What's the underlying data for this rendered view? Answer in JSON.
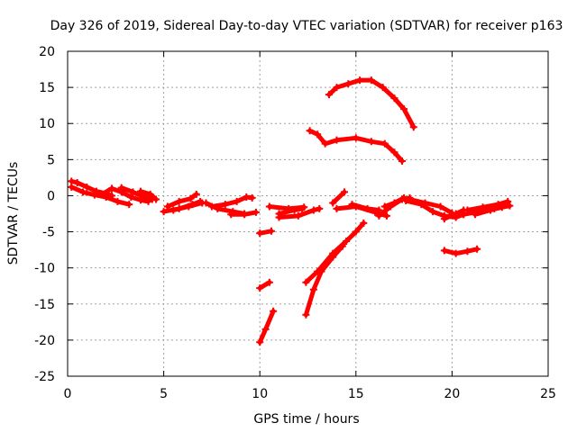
{
  "chart_data": {
    "type": "scatter",
    "title": "Day 326 of 2019, Sidereal Day-to-day VTEC variation (SDTVAR) for receiver p163",
    "xlabel": "GPS time / hours",
    "ylabel": "SDTVAR / TECUs",
    "xlim": [
      0,
      25
    ],
    "ylim": [
      -25,
      20
    ],
    "xticks": [
      0,
      5,
      10,
      15,
      20,
      25
    ],
    "yticks": [
      -25,
      -20,
      -15,
      -10,
      -5,
      0,
      5,
      10,
      15,
      20
    ],
    "grid": true,
    "marker": "+",
    "color": "#ff0000",
    "series": [
      {
        "name": "s1",
        "points": [
          [
            0.2,
            2.0
          ],
          [
            0.5,
            1.8
          ],
          [
            1.0,
            1.2
          ],
          [
            1.5,
            0.6
          ],
          [
            2.0,
            0.3
          ],
          [
            2.3,
            0.0
          ]
        ]
      },
      {
        "name": "s2",
        "points": [
          [
            0.2,
            1.2
          ],
          [
            0.8,
            0.5
          ],
          [
            1.4,
            0.1
          ],
          [
            2.0,
            -0.2
          ],
          [
            2.6,
            -0.8
          ],
          [
            3.2,
            -1.2
          ]
        ]
      },
      {
        "name": "s3",
        "points": [
          [
            1.8,
            0.2
          ],
          [
            2.3,
            1.0
          ],
          [
            2.8,
            0.5
          ],
          [
            3.3,
            -0.2
          ],
          [
            3.8,
            -0.6
          ],
          [
            4.2,
            -0.8
          ]
        ]
      },
      {
        "name": "s4",
        "points": [
          [
            2.8,
            1.1
          ],
          [
            3.4,
            0.5
          ],
          [
            4.0,
            -0.2
          ],
          [
            4.4,
            -0.5
          ]
        ]
      },
      {
        "name": "s5",
        "points": [
          [
            3.8,
            0.6
          ],
          [
            4.3,
            0.2
          ],
          [
            4.6,
            -0.5
          ]
        ]
      },
      {
        "name": "s6",
        "points": [
          [
            5.0,
            -2.2
          ],
          [
            5.8,
            -1.8
          ],
          [
            6.5,
            -1.2
          ],
          [
            6.9,
            -0.8
          ]
        ]
      },
      {
        "name": "s7",
        "points": [
          [
            5.2,
            -1.5
          ],
          [
            5.8,
            -0.8
          ],
          [
            6.4,
            -0.4
          ],
          [
            6.7,
            0.2
          ]
        ]
      },
      {
        "name": "s8",
        "points": [
          [
            5.5,
            -2.0
          ],
          [
            6.3,
            -1.5
          ],
          [
            7.0,
            -1.0
          ]
        ]
      },
      {
        "name": "s9",
        "points": [
          [
            7.2,
            -1.0
          ],
          [
            7.8,
            -1.8
          ],
          [
            8.6,
            -2.2
          ],
          [
            9.2,
            -2.5
          ]
        ]
      },
      {
        "name": "s10",
        "points": [
          [
            7.5,
            -1.5
          ],
          [
            8.2,
            -1.2
          ],
          [
            8.8,
            -0.8
          ],
          [
            9.3,
            -0.2
          ],
          [
            9.6,
            -0.3
          ]
        ]
      },
      {
        "name": "s11",
        "points": [
          [
            8.5,
            -2.6
          ],
          [
            9.2,
            -2.6
          ],
          [
            9.8,
            -2.3
          ]
        ]
      },
      {
        "name": "s12",
        "points": [
          [
            10.0,
            -5.2
          ],
          [
            10.6,
            -4.9
          ]
        ]
      },
      {
        "name": "s13",
        "points": [
          [
            10.0,
            -12.8
          ],
          [
            10.5,
            -12.0
          ]
        ]
      },
      {
        "name": "s14",
        "points": [
          [
            10.0,
            -20.3
          ],
          [
            10.3,
            -18.5
          ],
          [
            10.7,
            -16.0
          ]
        ]
      },
      {
        "name": "s15",
        "points": [
          [
            10.5,
            -1.5
          ],
          [
            11.5,
            -1.8
          ],
          [
            12.3,
            -1.6
          ]
        ]
      },
      {
        "name": "s16",
        "points": [
          [
            11.0,
            -3.0
          ],
          [
            12.0,
            -2.8
          ],
          [
            12.8,
            -2.0
          ],
          [
            13.1,
            -1.8
          ]
        ]
      },
      {
        "name": "s17",
        "points": [
          [
            11.0,
            -2.5
          ],
          [
            11.8,
            -2.0
          ],
          [
            12.2,
            -1.8
          ]
        ]
      },
      {
        "name": "s18",
        "points": [
          [
            13.8,
            -1.0
          ],
          [
            14.4,
            0.5
          ]
        ]
      },
      {
        "name": "s19",
        "points": [
          [
            12.4,
            -12.0
          ],
          [
            13.0,
            -10.5
          ],
          [
            13.8,
            -8.0
          ],
          [
            14.5,
            -6.3
          ],
          [
            15.0,
            -5.0
          ],
          [
            15.4,
            -3.8
          ]
        ]
      },
      {
        "name": "s20",
        "points": [
          [
            12.4,
            -16.5
          ],
          [
            12.8,
            -13.0
          ],
          [
            13.2,
            -10.5
          ],
          [
            13.8,
            -8.5
          ],
          [
            14.3,
            -7.0
          ]
        ]
      },
      {
        "name": "s21",
        "points": [
          [
            12.6,
            9.0
          ],
          [
            13.0,
            8.5
          ],
          [
            13.4,
            7.2
          ],
          [
            14.0,
            7.7
          ],
          [
            15.0,
            8.0
          ],
          [
            15.8,
            7.5
          ],
          [
            16.5,
            7.2
          ],
          [
            17.0,
            6.0
          ],
          [
            17.4,
            4.8
          ]
        ]
      },
      {
        "name": "s22",
        "points": [
          [
            13.6,
            14.0
          ],
          [
            14.0,
            15.0
          ],
          [
            14.6,
            15.5
          ],
          [
            15.2,
            16.0
          ],
          [
            15.8,
            16.0
          ],
          [
            16.4,
            15.0
          ],
          [
            17.0,
            13.5
          ],
          [
            17.5,
            12.0
          ],
          [
            18.0,
            9.5
          ]
        ]
      },
      {
        "name": "s23",
        "points": [
          [
            14.0,
            -1.8
          ],
          [
            15.0,
            -1.5
          ],
          [
            16.0,
            -2.3
          ],
          [
            16.6,
            -2.8
          ]
        ]
      },
      {
        "name": "s24",
        "points": [
          [
            14.8,
            -1.2
          ],
          [
            15.6,
            -1.8
          ],
          [
            16.2,
            -2.0
          ]
        ]
      },
      {
        "name": "s25",
        "points": [
          [
            16.2,
            -2.8
          ],
          [
            16.8,
            -1.5
          ],
          [
            17.4,
            -0.5
          ],
          [
            17.8,
            -0.3
          ]
        ]
      },
      {
        "name": "s26",
        "points": [
          [
            16.5,
            -1.5
          ],
          [
            17.0,
            -1.0
          ],
          [
            17.5,
            -0.3
          ]
        ]
      },
      {
        "name": "s27",
        "points": [
          [
            17.6,
            -0.7
          ],
          [
            18.4,
            -1.2
          ],
          [
            19.0,
            -2.2
          ],
          [
            19.6,
            -2.8
          ],
          [
            20.2,
            -3.0
          ],
          [
            20.6,
            -2.6
          ]
        ]
      },
      {
        "name": "s28",
        "points": [
          [
            17.8,
            -0.5
          ],
          [
            18.6,
            -1.0
          ],
          [
            19.4,
            -1.5
          ],
          [
            20.0,
            -2.4
          ]
        ]
      },
      {
        "name": "s29",
        "points": [
          [
            19.6,
            -3.2
          ],
          [
            20.2,
            -2.5
          ],
          [
            20.6,
            -2.0
          ]
        ]
      },
      {
        "name": "s30",
        "points": [
          [
            20.6,
            -2.6
          ],
          [
            21.4,
            -2.2
          ],
          [
            22.2,
            -1.8
          ],
          [
            22.8,
            -1.2
          ]
        ]
      },
      {
        "name": "s31",
        "points": [
          [
            20.8,
            -2.0
          ],
          [
            21.6,
            -1.6
          ],
          [
            22.4,
            -1.2
          ],
          [
            22.9,
            -0.8
          ]
        ]
      },
      {
        "name": "s32",
        "points": [
          [
            21.2,
            -2.6
          ],
          [
            22.0,
            -2.0
          ],
          [
            22.6,
            -1.6
          ],
          [
            23.0,
            -1.4
          ]
        ]
      },
      {
        "name": "s33",
        "points": [
          [
            19.6,
            -7.6
          ],
          [
            20.2,
            -8.0
          ],
          [
            20.8,
            -7.7
          ],
          [
            21.3,
            -7.4
          ]
        ]
      }
    ]
  }
}
